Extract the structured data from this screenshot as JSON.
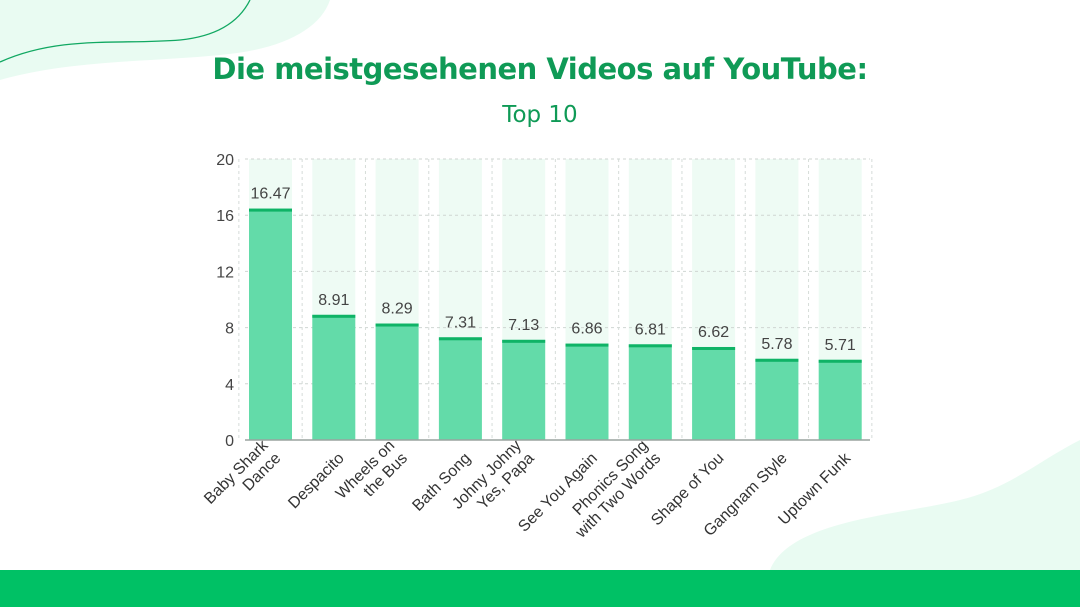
{
  "title": "Die meistgesehenen Videos auf YouTube:",
  "subtitle": "Top 10",
  "colors": {
    "brand": "#0f9a56",
    "bar_fill": "#63dba9",
    "bar_top": "#0fb366",
    "column_bg": "#eefbf4",
    "footer": "#00c165"
  },
  "chart_data": {
    "type": "bar",
    "categories": [
      [
        "Baby Shark",
        "Dance"
      ],
      [
        "Despacito"
      ],
      [
        "Wheels on",
        "the Bus"
      ],
      [
        "Bath Song"
      ],
      [
        "Johny Johny",
        "Yes, Papa"
      ],
      [
        "See You Again"
      ],
      [
        "Phonics Song",
        "with Two Words"
      ],
      [
        "Shape of You"
      ],
      [
        "Gangnam Style"
      ],
      [
        "Uptown Funk"
      ]
    ],
    "values": [
      16.47,
      8.91,
      8.29,
      7.31,
      7.13,
      6.86,
      6.81,
      6.62,
      5.78,
      5.71
    ],
    "value_labels": [
      "16.47",
      "8.91",
      "8.29",
      "7.31",
      "7.13",
      "6.86",
      "6.81",
      "6.62",
      "5.78",
      "5.71"
    ],
    "ylim": [
      0,
      20
    ],
    "yticks": [
      0,
      4,
      8,
      12,
      16,
      20
    ],
    "grid": true,
    "xlabel": "",
    "ylabel": ""
  }
}
